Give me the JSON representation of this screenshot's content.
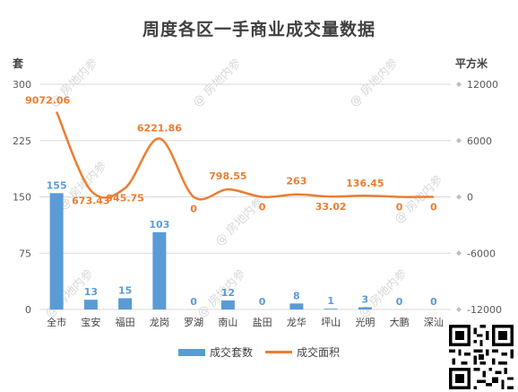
{
  "chart_data": {
    "type": "bar+line",
    "title": "周度各区一手商业成交量数据",
    "y_left_label": "套",
    "y_right_label": "平方米",
    "categories": [
      "全市",
      "宝安",
      "福田",
      "龙岗",
      "罗湖",
      "南山",
      "盐田",
      "龙华",
      "坪山",
      "光明",
      "大鹏",
      "深汕"
    ],
    "series": [
      {
        "name": "成交套数",
        "type": "bar",
        "axis": "left",
        "color": "#5b9bd5",
        "values": [
          155,
          13,
          15,
          103,
          0,
          12,
          0,
          8,
          1,
          3,
          0,
          0
        ],
        "labels": [
          "155",
          "13",
          "15",
          "103",
          "0",
          "12",
          "0",
          "8",
          "1",
          "3",
          "0",
          "0"
        ]
      },
      {
        "name": "成交面积",
        "type": "line",
        "axis": "right",
        "color": "#ed7d31",
        "values": [
          9072.06,
          673.43,
          945.75,
          6221.86,
          0,
          798.55,
          0,
          263,
          33.02,
          136.45,
          0,
          0
        ],
        "labels": [
          "9072.06",
          "673.43",
          "945.75",
          "6221.86",
          "0",
          "798.55",
          "0",
          "263",
          "33.02",
          "136.45",
          "0",
          "0"
        ]
      }
    ],
    "y_left": {
      "min": 0,
      "max": 300,
      "ticks": [
        0,
        75,
        150,
        225,
        300
      ]
    },
    "y_right": {
      "min": -12000,
      "max": 12000,
      "ticks": [
        -12000,
        -6000,
        0,
        6000,
        12000
      ]
    },
    "grid": true,
    "legend": "bottom",
    "watermark": "@ 房地内参"
  }
}
